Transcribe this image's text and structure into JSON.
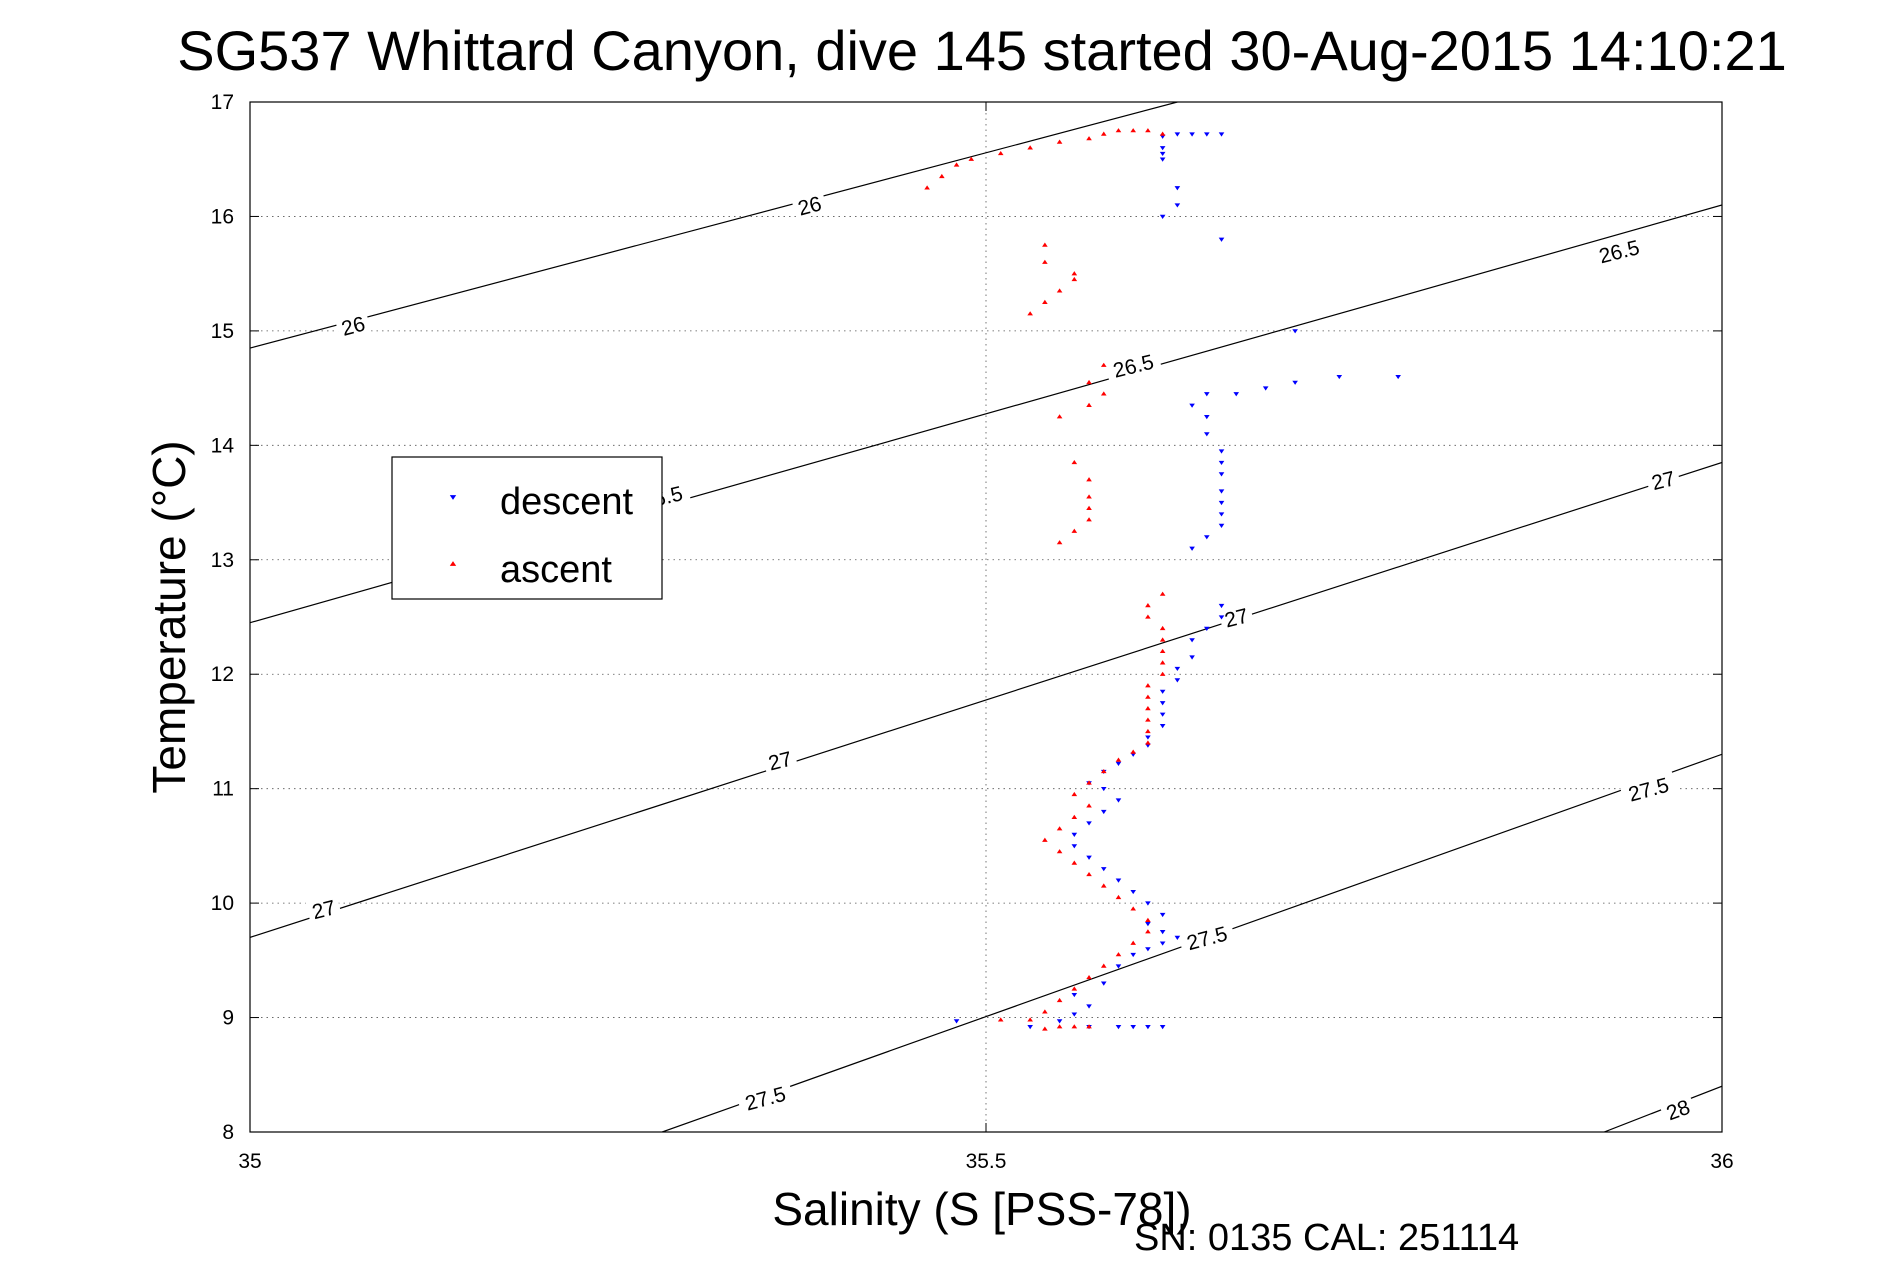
{
  "chart_data": {
    "type": "scatter",
    "title": "SG537 Whittard Canyon, dive 145 started 30-Aug-2015 14:10:21",
    "xlabel": "Salinity (S [PSS-78])",
    "ylabel": "Temperature (°C)",
    "footer": "SN: 0135  CAL: 251114",
    "xlim": [
      35,
      36
    ],
    "ylim": [
      8,
      17
    ],
    "x_ticks": [
      "35",
      "35.5",
      "36"
    ],
    "y_ticks": [
      "8",
      "9",
      "10",
      "11",
      "12",
      "13",
      "14",
      "15",
      "16",
      "17"
    ],
    "grid": true,
    "legend": {
      "placement": "left",
      "entries": [
        "descent",
        "ascent"
      ]
    },
    "colors": {
      "descent": "#0000ff",
      "ascent": "#ff0000",
      "contour": "#000000",
      "grid": "#555555"
    },
    "density_contours": [
      {
        "label": "26",
        "points": [
          [
            35,
            14.85
          ],
          [
            35.63,
            17.0
          ]
        ]
      },
      {
        "label": "26.5",
        "points": [
          [
            35,
            12.45
          ],
          [
            36,
            16.1
          ]
        ]
      },
      {
        "label": "27",
        "points": [
          [
            35,
            9.7
          ],
          [
            36,
            13.85
          ]
        ]
      },
      {
        "label": "27.5",
        "points": [
          [
            35.28,
            8.0
          ],
          [
            36,
            11.3
          ]
        ]
      },
      {
        "label": "28",
        "points": [
          [
            35.92,
            8.0
          ],
          [
            36,
            8.4
          ]
        ]
      }
    ],
    "contour_labels": [
      {
        "text": "26",
        "x": 35.38,
        "y": 16.1,
        "angle": -15
      },
      {
        "text": "26",
        "x": 35.07,
        "y": 15.05,
        "angle": -15
      },
      {
        "text": "26.5",
        "x": 35.93,
        "y": 15.7,
        "angle": -14
      },
      {
        "text": "26.5",
        "x": 35.6,
        "y": 14.7,
        "angle": -14
      },
      {
        "text": "26.5",
        "x": 35.28,
        "y": 13.55,
        "angle": -14
      },
      {
        "text": "27",
        "x": 35.96,
        "y": 13.7,
        "angle": -14
      },
      {
        "text": "27",
        "x": 35.67,
        "y": 12.5,
        "angle": -14
      },
      {
        "text": "27",
        "x": 35.36,
        "y": 11.25,
        "angle": -14
      },
      {
        "text": "27",
        "x": 35.05,
        "y": 9.95,
        "angle": -14
      },
      {
        "text": "27.5",
        "x": 35.95,
        "y": 11.0,
        "angle": -15
      },
      {
        "text": "27.5",
        "x": 35.65,
        "y": 9.7,
        "angle": -15
      },
      {
        "text": "27.5",
        "x": 35.35,
        "y": 8.3,
        "angle": -15
      },
      {
        "text": "28",
        "x": 35.97,
        "y": 8.2,
        "angle": -20
      }
    ],
    "series": [
      {
        "name": "descent",
        "marker": "triangle-down",
        "points": [
          [
            35.57,
            8.92
          ],
          [
            35.59,
            8.92
          ],
          [
            35.6,
            8.92
          ],
          [
            35.61,
            8.92
          ],
          [
            35.62,
            8.92
          ],
          [
            35.53,
            8.92
          ],
          [
            35.48,
            8.97
          ],
          [
            35.55,
            8.97
          ],
          [
            35.56,
            9.03
          ],
          [
            35.57,
            9.1
          ],
          [
            35.56,
            9.2
          ],
          [
            35.58,
            9.3
          ],
          [
            35.59,
            9.45
          ],
          [
            35.6,
            9.55
          ],
          [
            35.61,
            9.6
          ],
          [
            35.62,
            9.65
          ],
          [
            35.63,
            9.7
          ],
          [
            35.62,
            9.75
          ],
          [
            35.61,
            9.82
          ],
          [
            35.62,
            9.9
          ],
          [
            35.61,
            10.0
          ],
          [
            35.6,
            10.1
          ],
          [
            35.59,
            10.2
          ],
          [
            35.58,
            10.3
          ],
          [
            35.57,
            10.4
          ],
          [
            35.56,
            10.5
          ],
          [
            35.56,
            10.6
          ],
          [
            35.57,
            10.7
          ],
          [
            35.58,
            10.8
          ],
          [
            35.59,
            10.9
          ],
          [
            35.58,
            11.0
          ],
          [
            35.57,
            11.05
          ],
          [
            35.58,
            11.15
          ],
          [
            35.59,
            11.22
          ],
          [
            35.6,
            11.3
          ],
          [
            35.61,
            11.38
          ],
          [
            35.61,
            11.45
          ],
          [
            35.62,
            11.55
          ],
          [
            35.62,
            11.65
          ],
          [
            35.62,
            11.75
          ],
          [
            35.62,
            11.85
          ],
          [
            35.63,
            11.95
          ],
          [
            35.63,
            12.05
          ],
          [
            35.64,
            12.15
          ],
          [
            35.64,
            12.3
          ],
          [
            35.65,
            12.4
          ],
          [
            35.66,
            12.5
          ],
          [
            35.66,
            12.6
          ],
          [
            35.64,
            13.1
          ],
          [
            35.65,
            13.2
          ],
          [
            35.66,
            13.3
          ],
          [
            35.66,
            13.4
          ],
          [
            35.66,
            13.5
          ],
          [
            35.66,
            13.6
          ],
          [
            35.66,
            13.75
          ],
          [
            35.66,
            13.85
          ],
          [
            35.66,
            13.95
          ],
          [
            35.65,
            14.1
          ],
          [
            35.65,
            14.25
          ],
          [
            35.64,
            14.35
          ],
          [
            35.65,
            14.45
          ],
          [
            35.67,
            14.45
          ],
          [
            35.69,
            14.5
          ],
          [
            35.71,
            14.55
          ],
          [
            35.74,
            14.6
          ],
          [
            35.78,
            14.6
          ],
          [
            35.71,
            15.0
          ],
          [
            35.66,
            15.8
          ],
          [
            35.62,
            16.0
          ],
          [
            35.63,
            16.1
          ],
          [
            35.63,
            16.25
          ],
          [
            35.62,
            16.5
          ],
          [
            35.62,
            16.55
          ],
          [
            35.62,
            16.6
          ],
          [
            35.62,
            16.7
          ],
          [
            35.63,
            16.72
          ],
          [
            35.64,
            16.72
          ],
          [
            35.65,
            16.72
          ],
          [
            35.66,
            16.72
          ]
        ]
      },
      {
        "name": "ascent",
        "marker": "triangle-up",
        "points": [
          [
            35.54,
            8.9
          ],
          [
            35.55,
            8.92
          ],
          [
            35.56,
            8.92
          ],
          [
            35.57,
            8.92
          ],
          [
            35.51,
            8.98
          ],
          [
            35.53,
            8.98
          ],
          [
            35.54,
            9.05
          ],
          [
            35.55,
            9.15
          ],
          [
            35.56,
            9.25
          ],
          [
            35.57,
            9.35
          ],
          [
            35.58,
            9.45
          ],
          [
            35.59,
            9.55
          ],
          [
            35.6,
            9.65
          ],
          [
            35.61,
            9.75
          ],
          [
            35.61,
            9.85
          ],
          [
            35.6,
            9.95
          ],
          [
            35.59,
            10.05
          ],
          [
            35.58,
            10.15
          ],
          [
            35.57,
            10.25
          ],
          [
            35.56,
            10.35
          ],
          [
            35.55,
            10.45
          ],
          [
            35.54,
            10.55
          ],
          [
            35.55,
            10.65
          ],
          [
            35.56,
            10.75
          ],
          [
            35.57,
            10.85
          ],
          [
            35.56,
            10.95
          ],
          [
            35.57,
            11.05
          ],
          [
            35.58,
            11.15
          ],
          [
            35.59,
            11.25
          ],
          [
            35.6,
            11.32
          ],
          [
            35.61,
            11.4
          ],
          [
            35.61,
            11.5
          ],
          [
            35.61,
            11.6
          ],
          [
            35.61,
            11.7
          ],
          [
            35.61,
            11.8
          ],
          [
            35.61,
            11.9
          ],
          [
            35.62,
            12.0
          ],
          [
            35.62,
            12.1
          ],
          [
            35.62,
            12.2
          ],
          [
            35.62,
            12.3
          ],
          [
            35.62,
            12.4
          ],
          [
            35.61,
            12.5
          ],
          [
            35.61,
            12.6
          ],
          [
            35.62,
            12.7
          ],
          [
            35.55,
            13.15
          ],
          [
            35.56,
            13.25
          ],
          [
            35.57,
            13.35
          ],
          [
            35.57,
            13.45
          ],
          [
            35.57,
            13.55
          ],
          [
            35.57,
            13.7
          ],
          [
            35.56,
            13.85
          ],
          [
            35.55,
            14.25
          ],
          [
            35.57,
            14.35
          ],
          [
            35.58,
            14.45
          ],
          [
            35.57,
            14.55
          ],
          [
            35.58,
            14.7
          ],
          [
            35.53,
            15.15
          ],
          [
            35.54,
            15.25
          ],
          [
            35.55,
            15.35
          ],
          [
            35.56,
            15.45
          ],
          [
            35.56,
            15.5
          ],
          [
            35.54,
            15.6
          ],
          [
            35.54,
            15.75
          ],
          [
            35.46,
            16.25
          ],
          [
            35.47,
            16.35
          ],
          [
            35.48,
            16.45
          ],
          [
            35.49,
            16.5
          ],
          [
            35.51,
            16.55
          ],
          [
            35.53,
            16.6
          ],
          [
            35.55,
            16.65
          ],
          [
            35.57,
            16.68
          ],
          [
            35.58,
            16.72
          ],
          [
            35.59,
            16.75
          ],
          [
            35.6,
            16.75
          ],
          [
            35.61,
            16.75
          ],
          [
            35.62,
            16.72
          ]
        ]
      }
    ]
  }
}
